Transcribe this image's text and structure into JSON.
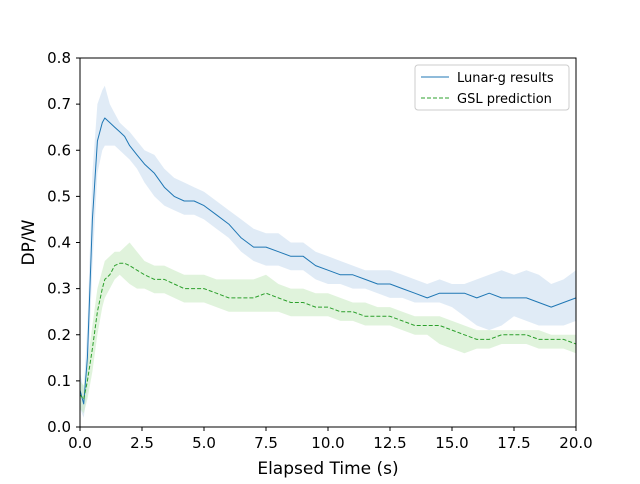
{
  "chart_data": {
    "type": "line",
    "title": "",
    "xlabel": "Elapsed Time (s)",
    "ylabel": "DP/W",
    "xlim": [
      0,
      20
    ],
    "ylim": [
      0,
      0.8
    ],
    "xticks": [
      0,
      2.5,
      5,
      7.5,
      10,
      12.5,
      15,
      17.5,
      20
    ],
    "xtick_labels": [
      "0.0",
      "2.5",
      "5.0",
      "7.5",
      "10.0",
      "12.5",
      "15.0",
      "17.5",
      "20.0"
    ],
    "yticks": [
      0,
      0.1,
      0.2,
      0.3,
      0.4,
      0.5,
      0.6,
      0.7,
      0.8
    ],
    "ytick_labels": [
      "0.0",
      "0.1",
      "0.2",
      "0.3",
      "0.4",
      "0.5",
      "0.6",
      "0.7",
      "0.8"
    ],
    "grid": false,
    "legend_position": "top-right",
    "series": [
      {
        "name": "Lunar-g results",
        "color": "#1f77b4",
        "band_color": "#c6dbef",
        "style": "solid",
        "x": [
          0.0,
          0.15,
          0.3,
          0.5,
          0.7,
          0.9,
          1.0,
          1.2,
          1.4,
          1.6,
          1.8,
          2.0,
          2.3,
          2.6,
          3.0,
          3.4,
          3.8,
          4.2,
          4.6,
          5.0,
          5.5,
          6.0,
          6.5,
          7.0,
          7.5,
          8.0,
          8.5,
          9.0,
          9.5,
          10.0,
          10.5,
          11.0,
          11.5,
          12.0,
          12.5,
          13.0,
          13.5,
          14.0,
          14.5,
          15.0,
          15.5,
          16.0,
          16.5,
          17.0,
          17.5,
          18.0,
          18.5,
          19.0,
          19.5,
          20.0
        ],
        "y": [
          0.08,
          0.05,
          0.15,
          0.45,
          0.62,
          0.66,
          0.67,
          0.66,
          0.65,
          0.64,
          0.63,
          0.61,
          0.59,
          0.57,
          0.55,
          0.52,
          0.5,
          0.49,
          0.49,
          0.48,
          0.46,
          0.44,
          0.41,
          0.39,
          0.39,
          0.38,
          0.37,
          0.37,
          0.35,
          0.34,
          0.33,
          0.33,
          0.32,
          0.31,
          0.31,
          0.3,
          0.29,
          0.28,
          0.29,
          0.29,
          0.29,
          0.28,
          0.29,
          0.28,
          0.28,
          0.28,
          0.27,
          0.26,
          0.27,
          0.28
        ],
        "lower": [
          0.04,
          0.02,
          0.08,
          0.35,
          0.55,
          0.6,
          0.61,
          0.61,
          0.61,
          0.6,
          0.59,
          0.58,
          0.56,
          0.53,
          0.5,
          0.48,
          0.47,
          0.46,
          0.46,
          0.45,
          0.43,
          0.41,
          0.38,
          0.36,
          0.35,
          0.35,
          0.34,
          0.34,
          0.32,
          0.31,
          0.31,
          0.3,
          0.3,
          0.29,
          0.28,
          0.28,
          0.27,
          0.27,
          0.27,
          0.26,
          0.24,
          0.22,
          0.21,
          0.22,
          0.24,
          0.23,
          0.22,
          0.22,
          0.22,
          0.23
        ],
        "upper": [
          0.12,
          0.08,
          0.22,
          0.55,
          0.7,
          0.73,
          0.74,
          0.7,
          0.68,
          0.66,
          0.65,
          0.64,
          0.62,
          0.6,
          0.59,
          0.56,
          0.54,
          0.53,
          0.52,
          0.51,
          0.49,
          0.47,
          0.45,
          0.43,
          0.42,
          0.42,
          0.4,
          0.4,
          0.38,
          0.37,
          0.36,
          0.35,
          0.34,
          0.34,
          0.34,
          0.33,
          0.32,
          0.31,
          0.32,
          0.31,
          0.31,
          0.32,
          0.33,
          0.34,
          0.33,
          0.34,
          0.33,
          0.31,
          0.32,
          0.34
        ]
      },
      {
        "name": "GSL prediction",
        "color": "#2ca02c",
        "band_color": "#c7e9c0",
        "style": "dashed",
        "x": [
          0.0,
          0.15,
          0.3,
          0.5,
          0.7,
          0.9,
          1.0,
          1.2,
          1.4,
          1.6,
          1.8,
          2.0,
          2.3,
          2.6,
          3.0,
          3.4,
          3.8,
          4.2,
          4.6,
          5.0,
          5.5,
          6.0,
          6.5,
          7.0,
          7.5,
          8.0,
          8.5,
          9.0,
          9.5,
          10.0,
          10.5,
          11.0,
          11.5,
          12.0,
          12.5,
          13.0,
          13.5,
          14.0,
          14.5,
          15.0,
          15.5,
          16.0,
          16.5,
          17.0,
          17.5,
          18.0,
          18.5,
          19.0,
          19.5,
          20.0
        ],
        "y": [
          0.07,
          0.06,
          0.1,
          0.17,
          0.25,
          0.3,
          0.32,
          0.33,
          0.35,
          0.355,
          0.355,
          0.35,
          0.34,
          0.33,
          0.32,
          0.32,
          0.31,
          0.3,
          0.3,
          0.3,
          0.29,
          0.28,
          0.28,
          0.28,
          0.29,
          0.28,
          0.27,
          0.27,
          0.26,
          0.26,
          0.25,
          0.25,
          0.24,
          0.24,
          0.24,
          0.23,
          0.22,
          0.22,
          0.22,
          0.21,
          0.2,
          0.19,
          0.19,
          0.2,
          0.2,
          0.2,
          0.19,
          0.19,
          0.19,
          0.18
        ],
        "lower": [
          0.04,
          0.03,
          0.06,
          0.12,
          0.2,
          0.26,
          0.28,
          0.3,
          0.32,
          0.33,
          0.32,
          0.31,
          0.3,
          0.3,
          0.29,
          0.29,
          0.28,
          0.27,
          0.27,
          0.27,
          0.26,
          0.25,
          0.25,
          0.25,
          0.25,
          0.25,
          0.24,
          0.24,
          0.24,
          0.24,
          0.23,
          0.23,
          0.22,
          0.22,
          0.22,
          0.21,
          0.2,
          0.2,
          0.18,
          0.17,
          0.16,
          0.17,
          0.17,
          0.18,
          0.18,
          0.18,
          0.17,
          0.17,
          0.17,
          0.16
        ],
        "upper": [
          0.1,
          0.09,
          0.14,
          0.22,
          0.3,
          0.34,
          0.36,
          0.37,
          0.38,
          0.38,
          0.39,
          0.4,
          0.38,
          0.36,
          0.35,
          0.35,
          0.34,
          0.33,
          0.33,
          0.33,
          0.32,
          0.32,
          0.32,
          0.32,
          0.33,
          0.31,
          0.3,
          0.3,
          0.29,
          0.29,
          0.28,
          0.27,
          0.27,
          0.26,
          0.26,
          0.25,
          0.24,
          0.24,
          0.24,
          0.23,
          0.22,
          0.21,
          0.21,
          0.21,
          0.21,
          0.21,
          0.21,
          0.2,
          0.2,
          0.2
        ]
      }
    ]
  }
}
